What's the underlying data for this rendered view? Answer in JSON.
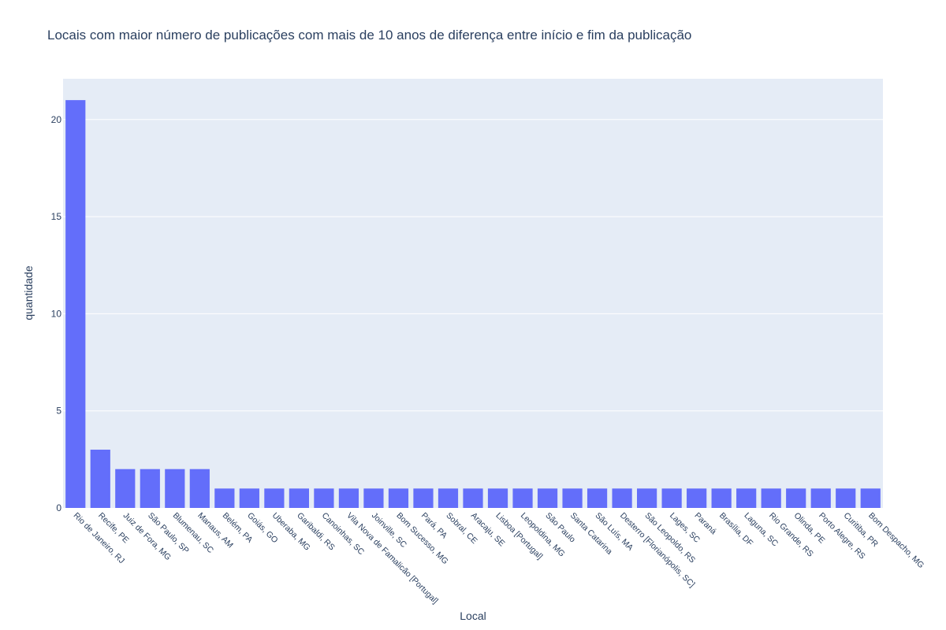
{
  "chart_data": {
    "type": "bar",
    "title": "Locais com maior número de publicações com mais de 10 anos de diferença entre início e fim da publicação",
    "xlabel": "Local",
    "ylabel": "quantidade",
    "ylim": [
      0,
      22.1
    ],
    "yticks": [
      0,
      5,
      10,
      15,
      20
    ],
    "grid": true,
    "bar_color": "#636efa",
    "plot_background": "#e5ecf6",
    "categories": [
      "Rio de Janeiro, RJ",
      "Recife, PE",
      "Juiz de Fora, MG",
      "São Paulo, SP",
      "Blumenau, SC",
      "Manaus, AM",
      "Belém, PA",
      "Goiás, GO",
      "Uberaba, MG",
      "Garibaldi, RS",
      "Canoinhas, SC",
      "Vila Nova de Famalicão [Portugal]",
      "Joinville, SC",
      "Bom Sucesso, MG",
      "Pará, PA",
      "Sobral, CE",
      "Aracaju, SE",
      "Lisboa [Portugal]",
      "Leopoldina, MG",
      "São Paulo",
      "Santa Catarina",
      "São Luís, MA",
      "Desterro [Florianópolis, SC]",
      "São Leopoldo, RS",
      "Lages, SC",
      "Paraná",
      "Brasília, DF",
      "Laguna, SC",
      "Rio Grande, RS",
      "Olinda, PE",
      "Porto Alegre, RS",
      "Curitiba, PR",
      "Bom Despacho, MG"
    ],
    "values": [
      21,
      3,
      2,
      2,
      2,
      2,
      1,
      1,
      1,
      1,
      1,
      1,
      1,
      1,
      1,
      1,
      1,
      1,
      1,
      1,
      1,
      1,
      1,
      1,
      1,
      1,
      1,
      1,
      1,
      1,
      1,
      1,
      1
    ]
  }
}
